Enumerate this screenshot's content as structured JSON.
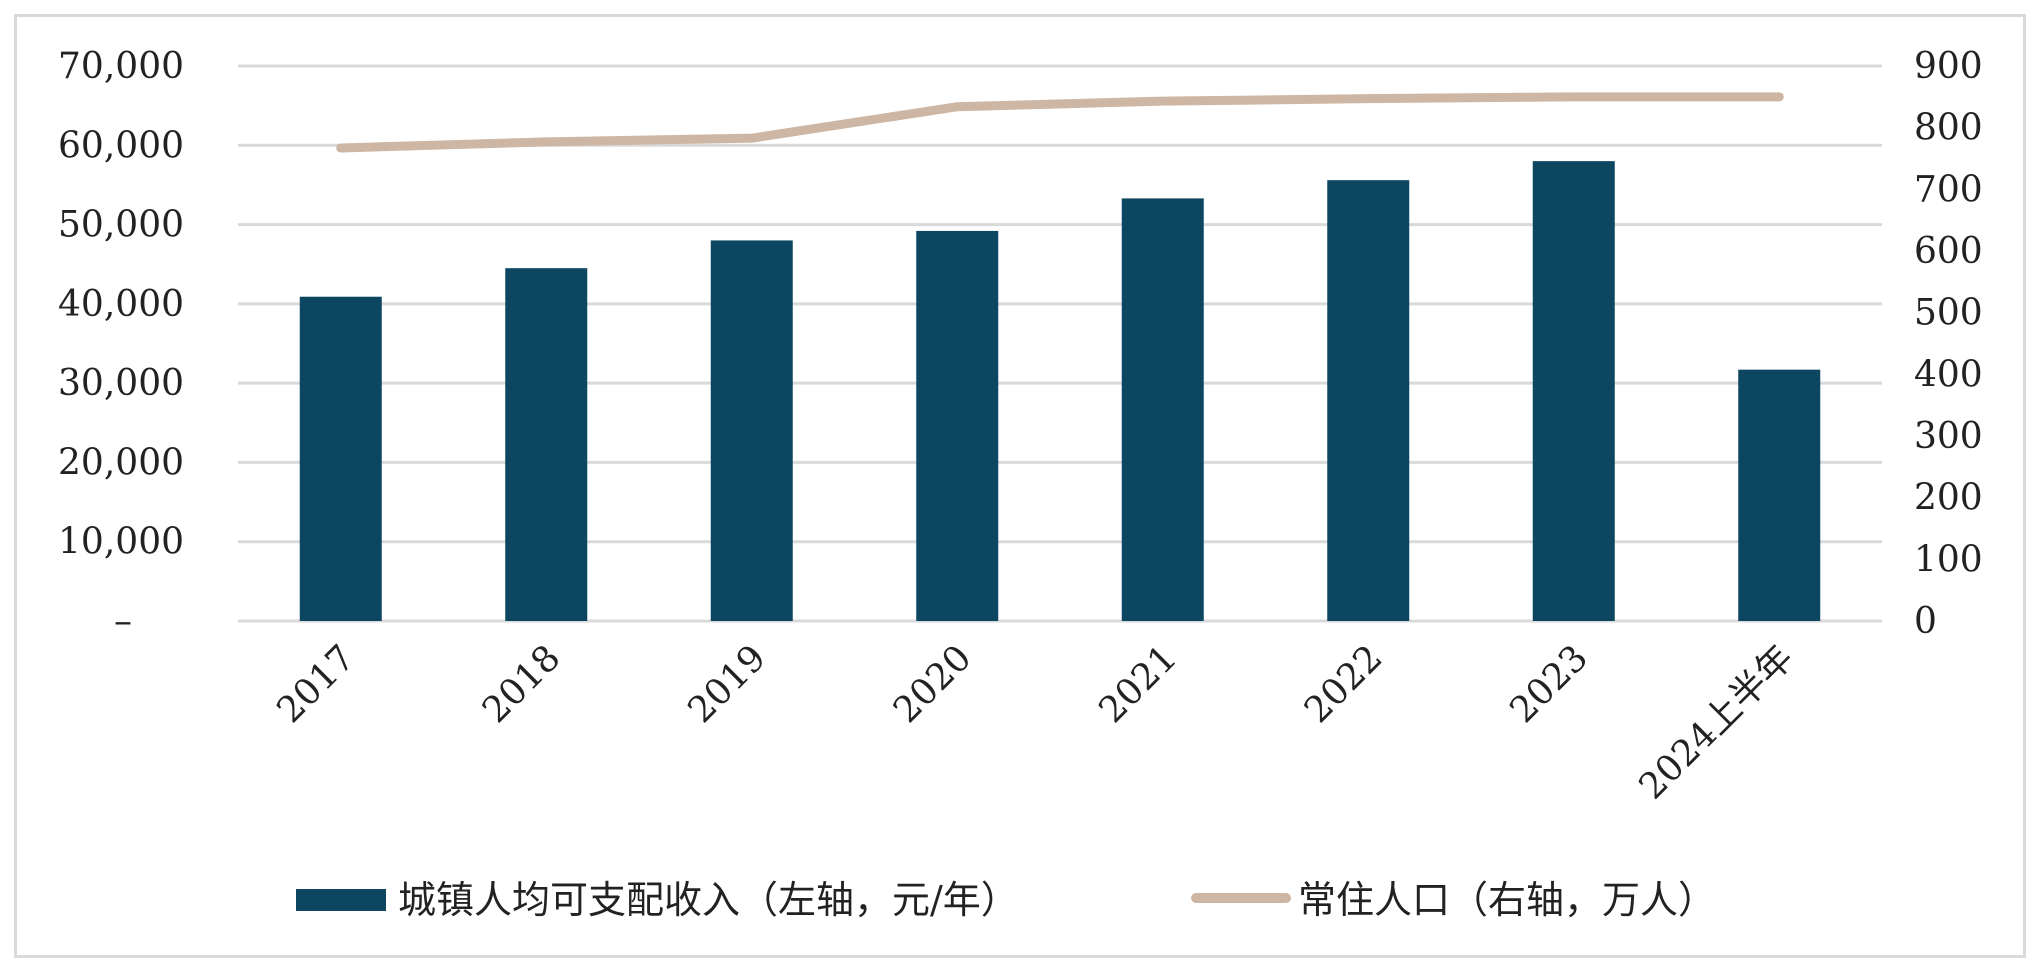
{
  "chart_data": {
    "type": "bar",
    "categories": [
      "2017",
      "2018",
      "2019",
      "2020",
      "2021",
      "2022",
      "2023",
      "2024上半年"
    ],
    "series": [
      {
        "name": "城镇人均可支配收入（左轴，元/年）",
        "type": "bar",
        "axis": "left",
        "color": "#0c4660",
        "values": [
          40900,
          44500,
          48000,
          49200,
          53300,
          55600,
          58000,
          31700
        ]
      },
      {
        "name": "常住人口（右轴，万人）",
        "type": "line",
        "axis": "right",
        "color": "#cdb6a3",
        "values": [
          767,
          777,
          783,
          834,
          843,
          847,
          850,
          850
        ]
      }
    ],
    "yleft": {
      "ylim": [
        0,
        70000
      ],
      "ticks": [
        "–",
        "10,000",
        "20,000",
        "30,000",
        "40,000",
        "50,000",
        "60,000",
        "70,000"
      ]
    },
    "yright": {
      "ylim": [
        0,
        900
      ],
      "ticks": [
        "0",
        "100",
        "200",
        "300",
        "400",
        "500",
        "600",
        "700",
        "800",
        "900"
      ]
    },
    "grid": true,
    "legend": "bottom"
  }
}
